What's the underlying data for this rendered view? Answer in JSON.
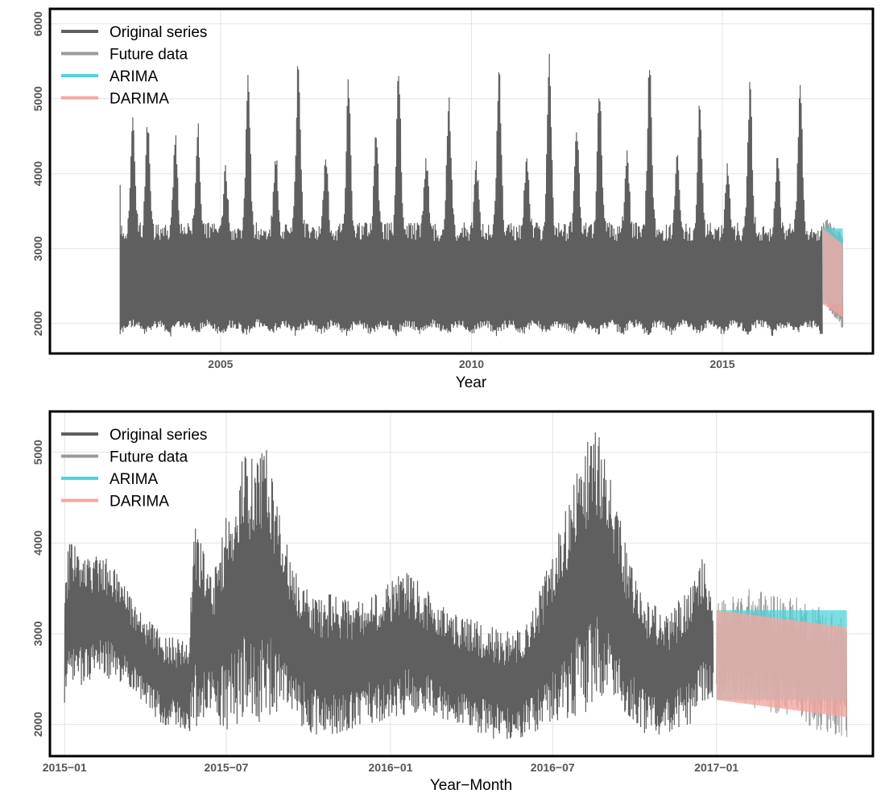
{
  "chart_data": [
    {
      "type": "line",
      "xlabel": "Year",
      "ylabel": "",
      "xlim": [
        2001.6,
        2018.0
      ],
      "ylim": [
        1600,
        6200
      ],
      "x_ticks": [
        2005,
        2010,
        2015
      ],
      "x_tick_labels": [
        "2005",
        "2010",
        "2015"
      ],
      "y_ticks": [
        2000,
        3000,
        4000,
        5000,
        6000
      ],
      "y_tick_labels": [
        "2000",
        "3000",
        "4000",
        "5000",
        "6000"
      ],
      "grid": true,
      "legend_position": "top-left",
      "legend": [
        "Original series",
        "Future data",
        "ARIMA",
        "DARIMA"
      ],
      "series": [
        {
          "name": "Original series",
          "color": "#5f5f5f",
          "x_range": [
            2003.0,
            2016.99
          ],
          "annual_low": 1820,
          "annual_peaks": [
            {
              "x": 2003.25,
              "y": 4850
            },
            {
              "x": 2003.55,
              "y": 4750
            },
            {
              "x": 2004.1,
              "y": 4550
            },
            {
              "x": 2004.55,
              "y": 4700
            },
            {
              "x": 2005.1,
              "y": 4150
            },
            {
              "x": 2005.55,
              "y": 5380
            },
            {
              "x": 2006.1,
              "y": 4350
            },
            {
              "x": 2006.55,
              "y": 5580
            },
            {
              "x": 2007.1,
              "y": 4300
            },
            {
              "x": 2007.55,
              "y": 5300
            },
            {
              "x": 2008.1,
              "y": 4700
            },
            {
              "x": 2008.55,
              "y": 5460
            },
            {
              "x": 2009.1,
              "y": 4300
            },
            {
              "x": 2009.55,
              "y": 5100
            },
            {
              "x": 2010.1,
              "y": 4200
            },
            {
              "x": 2010.55,
              "y": 5450
            },
            {
              "x": 2011.1,
              "y": 4300
            },
            {
              "x": 2011.55,
              "y": 5650
            },
            {
              "x": 2012.1,
              "y": 4650
            },
            {
              "x": 2012.55,
              "y": 5260
            },
            {
              "x": 2013.1,
              "y": 4400
            },
            {
              "x": 2013.55,
              "y": 5560
            },
            {
              "x": 2014.1,
              "y": 4350
            },
            {
              "x": 2014.55,
              "y": 5100
            },
            {
              "x": 2015.1,
              "y": 4200
            },
            {
              "x": 2015.55,
              "y": 5250
            },
            {
              "x": 2016.1,
              "y": 4300
            },
            {
              "x": 2016.55,
              "y": 5280
            }
          ]
        },
        {
          "name": "Future data",
          "color": "#9a9a9a",
          "x_range": [
            2017.0,
            2017.4
          ],
          "y_range": [
            1800,
            3550
          ]
        },
        {
          "name": "ARIMA",
          "color": "#4fd3d9",
          "band": {
            "x": [
              2017.0,
              2017.4
            ],
            "upper": [
              3270,
              3270
            ],
            "lower": [
              2260,
              2260
            ]
          }
        },
        {
          "name": "DARIMA",
          "color": "#f4a6a0",
          "band": {
            "x": [
              2017.0,
              2017.4
            ],
            "upper": [
              3270,
              3060
            ],
            "lower": [
              2260,
              2080
            ]
          }
        }
      ]
    },
    {
      "type": "line",
      "xlabel": "Year−Month",
      "ylabel": "",
      "xlim": [
        2014.955,
        2017.48
      ],
      "ylim": [
        1650,
        5450
      ],
      "x_ticks": [
        2015.0,
        2015.4959,
        2016.0,
        2016.4973,
        2017.0
      ],
      "x_tick_labels": [
        "2015−01",
        "2015−07",
        "2016−01",
        "2016−07",
        "2017−01"
      ],
      "y_ticks": [
        2000,
        3000,
        4000,
        5000
      ],
      "y_tick_labels": [
        "2000",
        "3000",
        "4000",
        "5000"
      ],
      "grid": true,
      "legend_position": "top-left",
      "legend": [
        "Original series",
        "Future data",
        "ARIMA",
        "DARIMA"
      ],
      "series": [
        {
          "name": "Original series",
          "color": "#5f5f5f",
          "x_range": [
            2015.0,
            2016.99
          ],
          "envelope": [
            {
              "x": 2015.0,
              "lo": 2200,
              "hi": 3300
            },
            {
              "x": 2015.01,
              "lo": 2250,
              "hi": 4050
            },
            {
              "x": 2015.08,
              "lo": 2500,
              "hi": 3900
            },
            {
              "x": 2015.15,
              "lo": 2500,
              "hi": 3800
            },
            {
              "x": 2015.22,
              "lo": 2300,
              "hi": 3300
            },
            {
              "x": 2015.3,
              "lo": 2000,
              "hi": 3000
            },
            {
              "x": 2015.38,
              "lo": 1900,
              "hi": 2900
            },
            {
              "x": 2015.4,
              "lo": 1900,
              "hi": 4350
            },
            {
              "x": 2015.45,
              "lo": 2100,
              "hi": 3600
            },
            {
              "x": 2015.5,
              "lo": 1900,
              "hi": 4400
            },
            {
              "x": 2015.55,
              "lo": 2000,
              "hi": 5000
            },
            {
              "x": 2015.62,
              "lo": 2000,
              "hi": 5080
            },
            {
              "x": 2015.68,
              "lo": 2200,
              "hi": 4000
            },
            {
              "x": 2015.75,
              "lo": 1850,
              "hi": 3500
            },
            {
              "x": 2015.85,
              "lo": 1900,
              "hi": 3400
            },
            {
              "x": 2015.92,
              "lo": 2000,
              "hi": 3400
            },
            {
              "x": 2016.0,
              "lo": 2050,
              "hi": 3600
            },
            {
              "x": 2016.05,
              "lo": 2100,
              "hi": 3700
            },
            {
              "x": 2016.12,
              "lo": 2100,
              "hi": 3450
            },
            {
              "x": 2016.22,
              "lo": 2000,
              "hi": 3200
            },
            {
              "x": 2016.3,
              "lo": 1850,
              "hi": 3100
            },
            {
              "x": 2016.38,
              "lo": 1800,
              "hi": 3000
            },
            {
              "x": 2016.45,
              "lo": 1900,
              "hi": 3400
            },
            {
              "x": 2016.52,
              "lo": 2000,
              "hi": 4200
            },
            {
              "x": 2016.58,
              "lo": 2100,
              "hi": 5000
            },
            {
              "x": 2016.64,
              "lo": 2200,
              "hi": 5300
            },
            {
              "x": 2016.68,
              "lo": 2300,
              "hi": 4700
            },
            {
              "x": 2016.72,
              "lo": 2100,
              "hi": 4000
            },
            {
              "x": 2016.78,
              "lo": 1850,
              "hi": 3400
            },
            {
              "x": 2016.85,
              "lo": 1900,
              "hi": 3200
            },
            {
              "x": 2016.93,
              "lo": 2000,
              "hi": 3600
            },
            {
              "x": 2016.96,
              "lo": 2200,
              "hi": 3900
            },
            {
              "x": 2016.99,
              "lo": 2300,
              "hi": 3300
            }
          ]
        },
        {
          "name": "Future data",
          "color": "#9a9a9a",
          "envelope": [
            {
              "x": 2017.0,
              "lo": 2300,
              "hi": 3350
            },
            {
              "x": 2017.1,
              "lo": 2200,
              "hi": 3500
            },
            {
              "x": 2017.2,
              "lo": 2100,
              "hi": 3450
            },
            {
              "x": 2017.3,
              "lo": 1950,
              "hi": 3350
            },
            {
              "x": 2017.4,
              "lo": 1800,
              "hi": 3200
            }
          ]
        },
        {
          "name": "ARIMA",
          "color": "#4fd3d9",
          "band": {
            "x": [
              2017.0,
              2017.4
            ],
            "upper": [
              3260,
              3260
            ],
            "lower": [
              2270,
              2270
            ]
          }
        },
        {
          "name": "DARIMA",
          "color": "#f4a6a0",
          "band": {
            "x": [
              2017.0,
              2017.4
            ],
            "upper": [
              3260,
              3070
            ],
            "lower": [
              2270,
              2080
            ]
          }
        }
      ]
    }
  ]
}
